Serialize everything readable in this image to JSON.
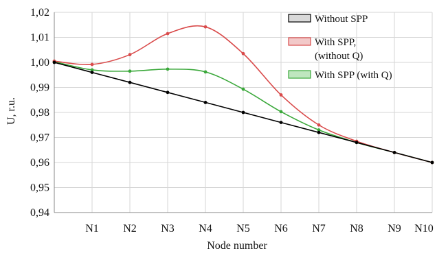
{
  "chart_data": {
    "type": "line",
    "xlabel": "Node number",
    "ylabel": "U, r.u.",
    "categories": [
      "",
      "N1",
      "N2",
      "N3",
      "N4",
      "N5",
      "N6",
      "N7",
      "N8",
      "N9",
      "N10"
    ],
    "ylim": [
      0.94,
      1.02
    ],
    "yticks": [
      0.94,
      0.95,
      0.96,
      0.97,
      0.98,
      0.99,
      1.0,
      1.01,
      1.02
    ],
    "ytick_labels": [
      "0,94",
      "0,95",
      "0,96",
      "0,97",
      "0,98",
      "0,99",
      "1,00",
      "1,01",
      "1,02"
    ],
    "grid": true,
    "legend_position": "top-right",
    "series": [
      {
        "name": "Without SPP",
        "color": "#000000",
        "fill": "#d9d9d9",
        "values": [
          1.0,
          0.996,
          0.992,
          0.988,
          0.984,
          0.98,
          0.976,
          0.972,
          0.968,
          0.964,
          0.96
        ]
      },
      {
        "name": "With SPP, (without Q)",
        "legend_lines": [
          "With SPP,",
          "(without Q)"
        ],
        "color": "#d94b4b",
        "fill": "#f2c9c9",
        "values": [
          1.0005,
          0.9992,
          1.0031,
          1.0115,
          1.0142,
          1.0035,
          0.987,
          0.975,
          0.9685,
          0.964,
          0.96
        ]
      },
      {
        "name": "With SPP (with Q)",
        "legend_lines": [
          "With SPP (with Q)"
        ],
        "color": "#3aa83a",
        "fill": "#bfe6bf",
        "values": [
          1.0003,
          0.997,
          0.9965,
          0.9973,
          0.9962,
          0.9893,
          0.9803,
          0.973,
          0.968,
          0.964,
          0.96
        ]
      }
    ]
  }
}
